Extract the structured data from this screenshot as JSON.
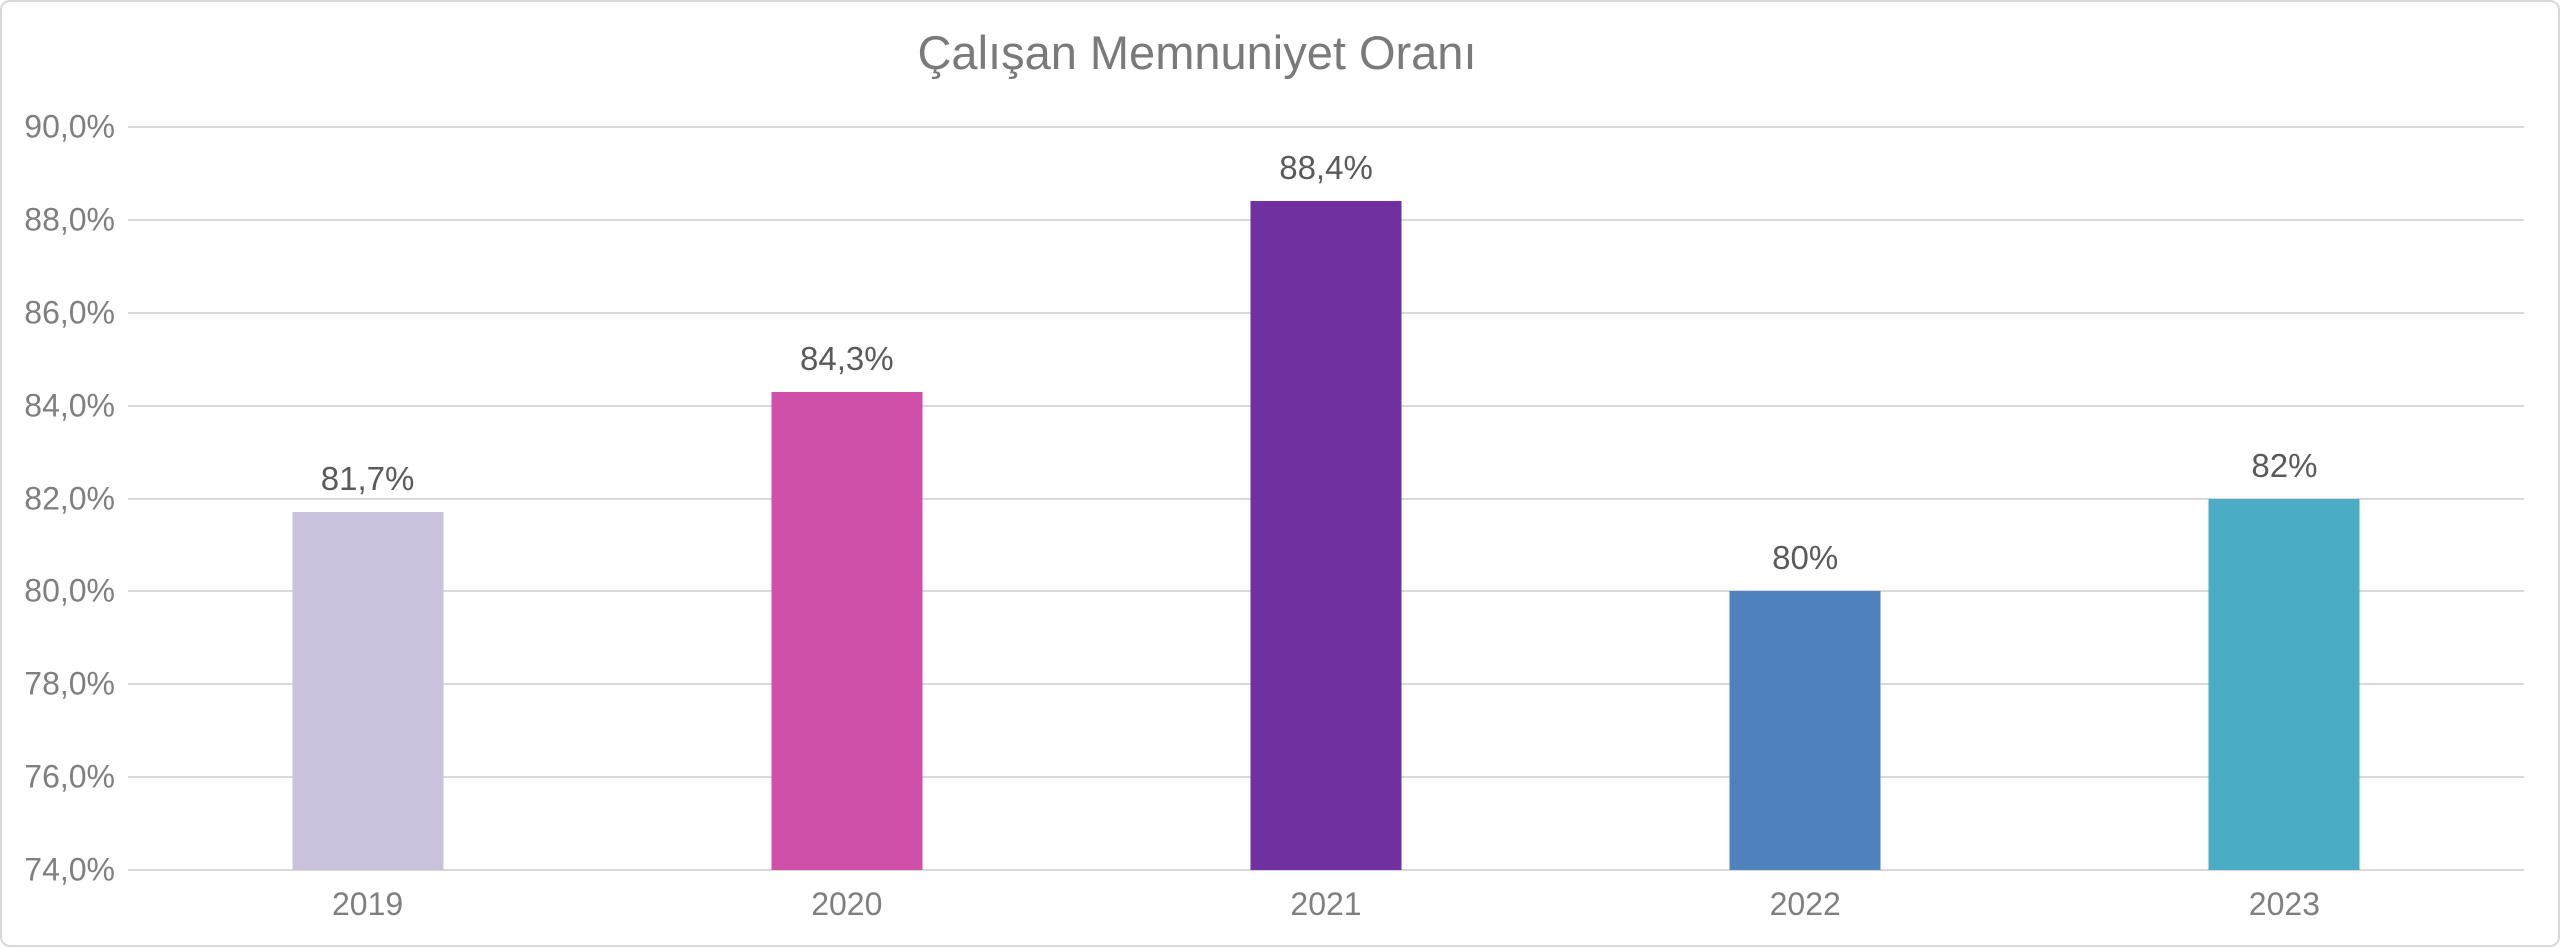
{
  "chart_data": {
    "type": "bar",
    "title": "Çalışan Memnuniyet Oranı",
    "categories": [
      "2019",
      "2020",
      "2021",
      "2022",
      "2023"
    ],
    "values": [
      81.7,
      84.3,
      88.4,
      80,
      82
    ],
    "data_labels": [
      "81,7%",
      "84,3%",
      "88,4%",
      "80%",
      "82%"
    ],
    "bar_colors": [
      "#CAC2DC",
      "#D04FA8",
      "#7030A0",
      "#4F81BD",
      "#4BACC6"
    ],
    "xlabel": "",
    "ylabel": "",
    "ylim": [
      74,
      90
    ],
    "yticks": [
      {
        "v": 74,
        "label": "74,0%"
      },
      {
        "v": 76,
        "label": "76,0%"
      },
      {
        "v": 78,
        "label": "78,0%"
      },
      {
        "v": 80,
        "label": "80,0%"
      },
      {
        "v": 82,
        "label": "82,0%"
      },
      {
        "v": 84,
        "label": "84,0%"
      },
      {
        "v": 86,
        "label": "86,0%"
      },
      {
        "v": 88,
        "label": "88,0%"
      },
      {
        "v": 90,
        "label": "90,0%"
      }
    ],
    "grid": true,
    "legend": "none"
  },
  "colors": {
    "gridline": "#D9D9D9",
    "chart_border": "#D9D9D9",
    "title_text": "#7A7A7A",
    "axis_text": "#7F7F7F",
    "data_label_text": "#5A5A5A",
    "background": "#ffffff"
  }
}
